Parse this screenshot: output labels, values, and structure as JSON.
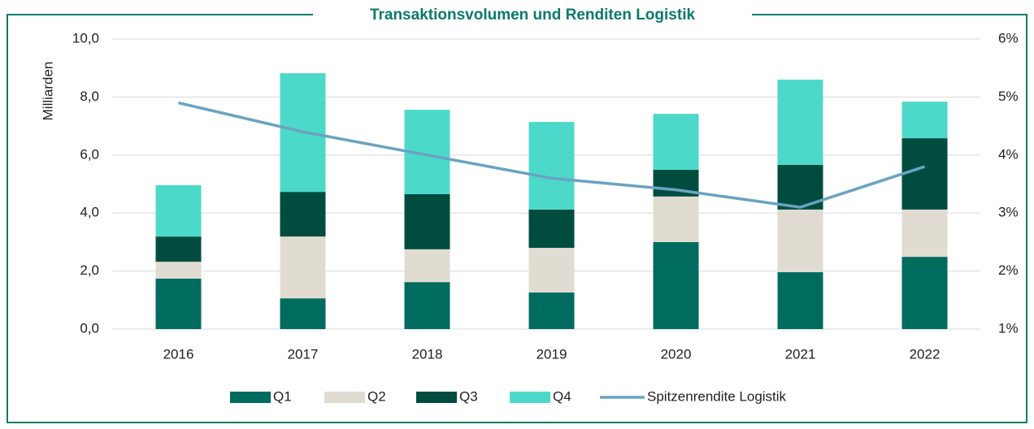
{
  "chart_data": {
    "type": "bar",
    "title": "Transaktionsvolumen und Renditen Logistik",
    "y_label": "Milliarden",
    "categories": [
      "2016",
      "2017",
      "2018",
      "2019",
      "2020",
      "2021",
      "2022"
    ],
    "stacked": true,
    "series": [
      {
        "name": "Q1",
        "color": "#006b5f",
        "values": [
          1.74,
          1.06,
          1.62,
          1.26,
          3.0,
          1.96,
          2.49
        ]
      },
      {
        "name": "Q2",
        "color": "#e0dcd2",
        "values": [
          0.58,
          2.13,
          1.13,
          1.54,
          1.57,
          2.16,
          1.63
        ]
      },
      {
        "name": "Q3",
        "color": "#004d40",
        "values": [
          0.87,
          1.54,
          1.9,
          1.32,
          0.92,
          1.54,
          2.46
        ]
      },
      {
        "name": "Q4",
        "color": "#4dd9c9",
        "values": [
          1.77,
          4.09,
          2.91,
          3.02,
          1.93,
          2.94,
          1.26
        ]
      },
      {
        "name": "Spitzenrendite Logistik",
        "type": "line",
        "axis": "y2",
        "color": "#6aa3c2",
        "values": [
          4.9,
          4.4,
          4.0,
          3.6,
          3.4,
          3.1,
          3.8
        ]
      }
    ],
    "ylim": [
      0,
      10
    ],
    "yticks": [
      {
        "value": 0,
        "label": "0,0"
      },
      {
        "value": 2,
        "label": "2,0"
      },
      {
        "value": 4,
        "label": "4,0"
      },
      {
        "value": 6,
        "label": "6,0"
      },
      {
        "value": 8,
        "label": "8,0"
      },
      {
        "value": 10,
        "label": "10,0"
      }
    ],
    "y2lim": [
      1,
      6
    ],
    "y2ticks": [
      {
        "value": 1,
        "label": "1%"
      },
      {
        "value": 2,
        "label": "2%"
      },
      {
        "value": 3,
        "label": "3%"
      },
      {
        "value": 4,
        "label": "4%"
      },
      {
        "value": 5,
        "label": "5%"
      },
      {
        "value": 6,
        "label": "6%"
      }
    ],
    "grid": true,
    "legend": "bottom"
  }
}
